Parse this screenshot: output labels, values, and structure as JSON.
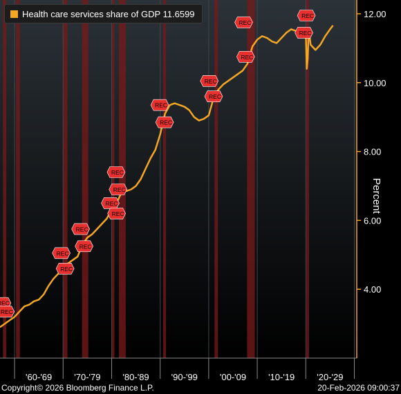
{
  "chart_data": {
    "type": "line",
    "legend": {
      "label": "Health care services share of GDP 11.6599"
    },
    "ylabel": "Percent",
    "ylim": [
      2.0,
      12.4
    ],
    "y_ticks": [
      "4.00",
      "6.00",
      "8.00",
      "10.00",
      "12.00"
    ],
    "x_range": [
      1957.0,
      2030.5
    ],
    "x_tick_labels": [
      {
        "label": "'60-'69",
        "year": 1965
      },
      {
        "label": "'70-'79",
        "year": 1975
      },
      {
        "label": "'80-'89",
        "year": 1985
      },
      {
        "label": "'90-'99",
        "year": 1995
      },
      {
        "label": "'00-'09",
        "year": 2005
      },
      {
        "label": "'10-'19",
        "year": 2015
      },
      {
        "label": "'20-'29",
        "year": 2025
      }
    ],
    "decade_boundaries": [
      1960,
      1970,
      1980,
      1990,
      2000,
      2010,
      2020,
      2030
    ],
    "recessions": [
      {
        "start": 1957.6,
        "end": 1958.3
      },
      {
        "start": 1960.3,
        "end": 1961.1
      },
      {
        "start": 1969.9,
        "end": 1970.9
      },
      {
        "start": 1973.9,
        "end": 1975.2
      },
      {
        "start": 1980.0,
        "end": 1980.5
      },
      {
        "start": 1981.5,
        "end": 1982.9
      },
      {
        "start": 1990.6,
        "end": 1991.2
      },
      {
        "start": 2001.2,
        "end": 2001.9
      },
      {
        "start": 2007.9,
        "end": 2009.5
      },
      {
        "start": 2020.1,
        "end": 2020.3
      }
    ],
    "rec_marker_label": "REC",
    "rec_markers": [
      {
        "year": 1957.7,
        "value": 3.6
      },
      {
        "year": 1958.4,
        "value": 3.35
      },
      {
        "year": 1969.9,
        "value": 5.05
      },
      {
        "year": 1970.7,
        "value": 4.6
      },
      {
        "year": 1973.9,
        "value": 5.75
      },
      {
        "year": 1974.6,
        "value": 5.25
      },
      {
        "year": 1980.0,
        "value": 6.5
      },
      {
        "year": 1981.2,
        "value": 7.4
      },
      {
        "year": 1981.6,
        "value": 6.9
      },
      {
        "year": 1981.3,
        "value": 6.2
      },
      {
        "year": 1990.2,
        "value": 9.35
      },
      {
        "year": 1991.2,
        "value": 8.85
      },
      {
        "year": 2000.4,
        "value": 10.05
      },
      {
        "year": 2001.3,
        "value": 9.6
      },
      {
        "year": 2007.5,
        "value": 11.75
      },
      {
        "year": 2007.9,
        "value": 10.75
      },
      {
        "year": 2019.9,
        "value": 11.45
      },
      {
        "year": 2020.4,
        "value": 11.95
      }
    ],
    "series": [
      {
        "name": "Health care services share of GDP",
        "color": "#f5a623",
        "x": [
          1957.0,
          1958.0,
          1959.0,
          1960.0,
          1961.0,
          1962.0,
          1963.0,
          1964.0,
          1965.0,
          1966.0,
          1967.0,
          1968.0,
          1969.0,
          1970.0,
          1971.0,
          1972.0,
          1973.0,
          1974.0,
          1975.0,
          1976.0,
          1977.0,
          1978.0,
          1979.0,
          1980.0,
          1981.0,
          1982.0,
          1983.0,
          1984.0,
          1985.0,
          1986.0,
          1987.0,
          1988.0,
          1989.0,
          1990.0,
          1991.0,
          1992.0,
          1993.0,
          1994.0,
          1995.0,
          1996.0,
          1997.0,
          1998.0,
          1999.0,
          2000.0,
          2001.0,
          2002.0,
          2003.0,
          2004.0,
          2005.0,
          2006.0,
          2007.0,
          2008.0,
          2009.0,
          2010.0,
          2011.0,
          2012.0,
          2013.0,
          2014.0,
          2015.0,
          2016.0,
          2017.0,
          2018.0,
          2019.0,
          2020.0,
          2020.2,
          2020.4,
          2020.6,
          2021.0,
          2022.0,
          2023.0,
          2024.0,
          2025.0,
          2025.6
        ],
        "y": [
          2.9,
          3.0,
          3.1,
          3.2,
          3.35,
          3.5,
          3.55,
          3.65,
          3.7,
          3.85,
          4.1,
          4.3,
          4.45,
          4.7,
          4.75,
          4.85,
          4.95,
          5.3,
          5.5,
          5.6,
          5.75,
          5.9,
          6.05,
          6.3,
          6.5,
          6.8,
          6.85,
          6.9,
          7.0,
          7.2,
          7.5,
          7.8,
          8.05,
          8.5,
          9.1,
          9.35,
          9.4,
          9.35,
          9.3,
          9.2,
          9.0,
          8.9,
          8.95,
          9.05,
          9.55,
          9.8,
          9.95,
          10.05,
          10.15,
          10.25,
          10.35,
          10.55,
          11.05,
          11.25,
          11.35,
          11.3,
          11.2,
          11.15,
          11.3,
          11.45,
          11.55,
          11.5,
          11.45,
          11.45,
          10.4,
          10.7,
          11.55,
          11.1,
          10.95,
          11.1,
          11.35,
          11.55,
          11.66
        ]
      }
    ]
  },
  "footer": {
    "copyright": "Copyright© 2026 Bloomberg Finance L.P.",
    "timestamp": "20-Feb-2026 09:00:37"
  }
}
